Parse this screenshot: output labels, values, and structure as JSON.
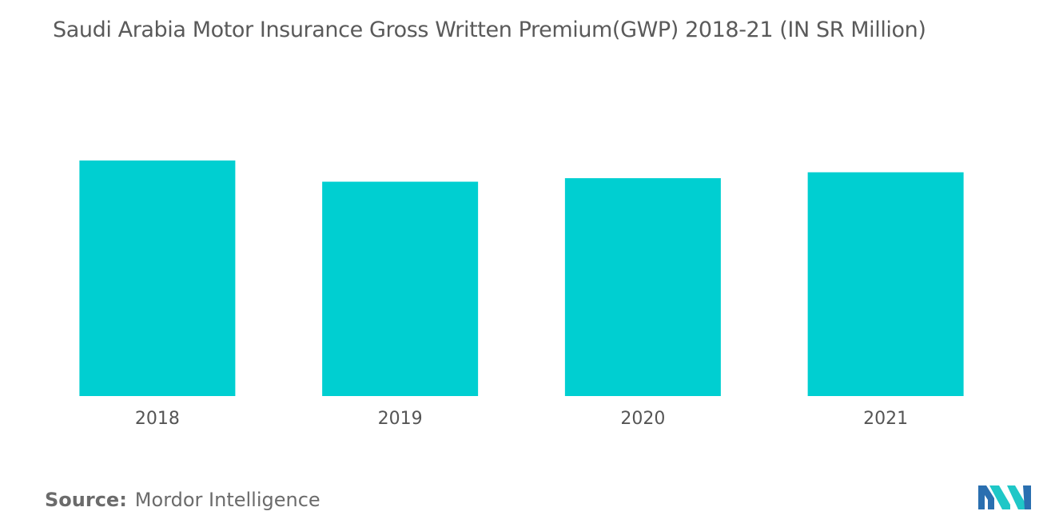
{
  "title": "Saudi Arabia Motor Insurance Gross Written Premium(GWP) 2018-21 (IN SR Million)",
  "source": {
    "label": "Source:",
    "text": "Mordor Intelligence"
  },
  "logo": {
    "icon": "mordor-intelligence-logo-icon",
    "colors": [
      "#2a6fb0",
      "#1fc7c7"
    ]
  },
  "colors": {
    "bar": "#00cfd1",
    "text": "#555555"
  },
  "chart_data": {
    "type": "bar",
    "title": "Saudi Arabia Motor Insurance Gross Written Premium(GWP) 2018-21 (IN SR Million)",
    "categories": [
      "2018",
      "2019",
      "2020",
      "2021"
    ],
    "values": [
      100,
      91,
      92.5,
      95
    ],
    "value_scale": "relative (no axis or data labels printed)",
    "ylim": [
      0,
      100
    ],
    "grid": false,
    "legend": "none"
  }
}
